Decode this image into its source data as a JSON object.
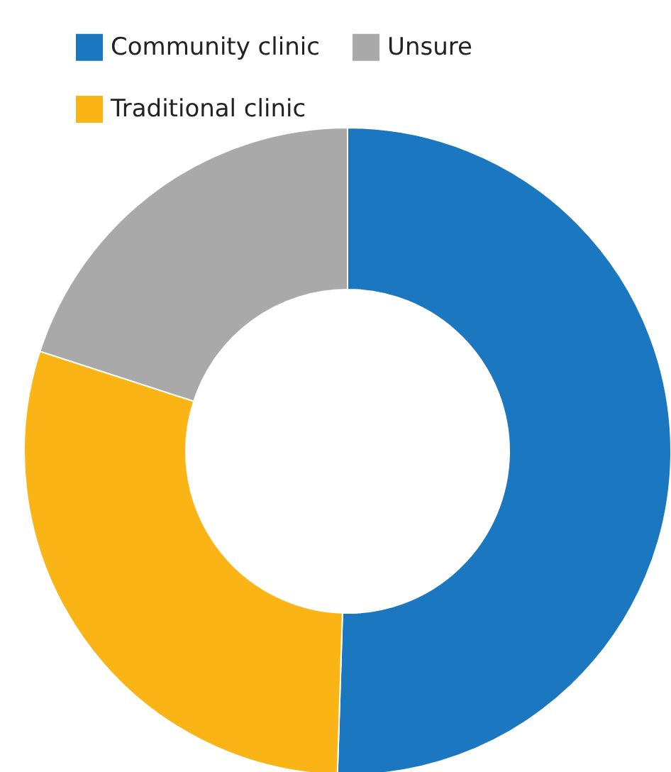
{
  "chart_data": {
    "type": "donut",
    "categories": [
      "Community clinic",
      "Traditional clinic",
      "Unsure"
    ],
    "values": [
      50.5,
      29.5,
      20
    ],
    "colors": [
      "#1a77c0",
      "#fbb416",
      "#a9a9a9"
    ],
    "legend": "top"
  }
}
